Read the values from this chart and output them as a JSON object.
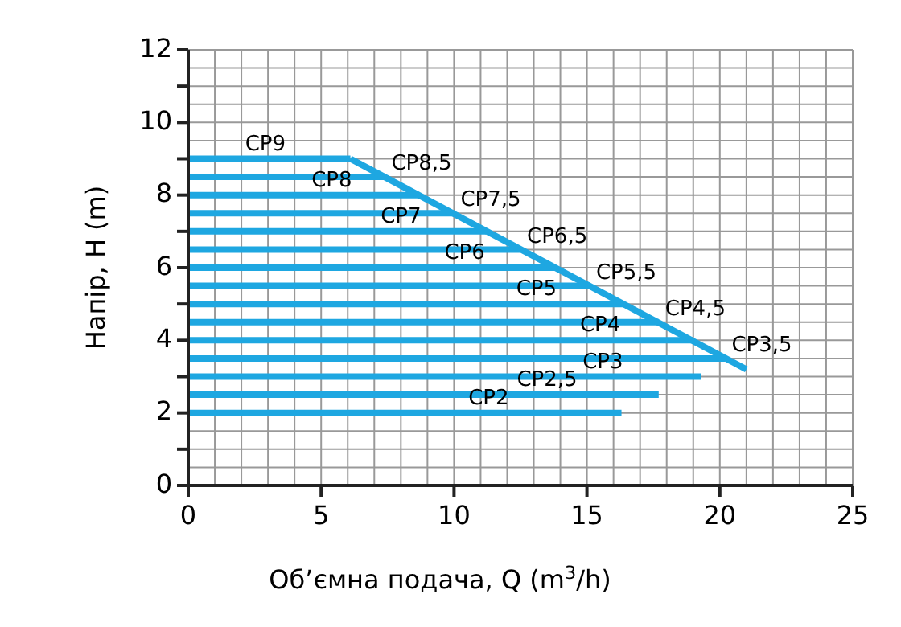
{
  "chart_data": {
    "type": "line",
    "xlabel": "Об’ємна подача, Q (m$^{3}$/h)",
    "ylabel": "Напір, H (m)",
    "xlim": [
      0,
      25
    ],
    "ylim": [
      0,
      12
    ],
    "xticks": [
      0,
      {
        "value": 1,
        "label": null
      },
      {
        "value": 2,
        "label": null
      },
      {
        "value": 3,
        "label": null
      },
      {
        "value": 4,
        "label": null
      },
      5,
      {
        "value": 6,
        "label": null
      },
      {
        "value": 7,
        "label": null
      },
      {
        "value": 8,
        "label": null
      },
      {
        "value": 9,
        "label": null
      },
      10,
      {
        "value": 11,
        "label": null
      },
      {
        "value": 12,
        "label": null
      },
      {
        "value": 13,
        "label": null
      },
      {
        "value": 14,
        "label": null
      },
      15,
      {
        "value": 16,
        "label": null
      },
      {
        "value": 17,
        "label": null
      },
      {
        "value": 18,
        "label": null
      },
      {
        "value": 19,
        "label": null
      },
      20,
      {
        "value": 21,
        "label": null
      },
      {
        "value": 22,
        "label": null
      },
      {
        "value": 23,
        "label": null
      },
      {
        "value": 24,
        "label": null
      },
      25
    ],
    "yticks": [
      0,
      {
        "value": 0.5,
        "label": null
      },
      {
        "value": 1,
        "label": null
      },
      {
        "value": 1.5,
        "label": null
      },
      2,
      {
        "value": 2.5,
        "label": null
      },
      {
        "value": 3,
        "label": null
      },
      {
        "value": 3.5,
        "label": null
      },
      4,
      {
        "value": 4.5,
        "label": null
      },
      {
        "value": 5,
        "label": null
      },
      {
        "value": 5.5,
        "label": null
      },
      6,
      {
        "value": 6.5,
        "label": null
      },
      {
        "value": 7,
        "label": null
      },
      {
        "value": 7.5,
        "label": null
      },
      8,
      {
        "value": 8.5,
        "label": null
      },
      {
        "value": 9,
        "label": null
      },
      {
        "value": 9.5,
        "label": null
      },
      10,
      {
        "value": 10.5,
        "label": null
      },
      {
        "value": 11,
        "label": null
      },
      {
        "value": 11.5,
        "label": null
      },
      12
    ],
    "grid": true,
    "marker": "none",
    "line_style": "solid",
    "series": [
      {
        "color": "#1ea7e1",
        "x": [
          0,
          16.3
        ],
        "values": [
          2,
          2
        ]
      },
      {
        "color": "#1ea7e1",
        "x": [
          0,
          17.7
        ],
        "values": [
          2.5,
          2.5
        ]
      },
      {
        "color": "#1ea7e1",
        "x": [
          0,
          19.3
        ],
        "values": [
          3,
          3
        ]
      },
      {
        "color": "#1ea7e1",
        "x": [
          0,
          20.2
        ],
        "values": [
          3.5,
          3.5
        ]
      },
      {
        "color": "#1ea7e1",
        "x": [
          0,
          19
        ],
        "values": [
          4,
          4
        ]
      },
      {
        "color": "#1ea7e1",
        "x": [
          0,
          17.7
        ],
        "values": [
          4.5,
          4.5
        ]
      },
      {
        "color": "#1ea7e1",
        "x": [
          0,
          16.4
        ],
        "values": [
          5,
          5
        ]
      },
      {
        "color": "#1ea7e1",
        "x": [
          0,
          15.1
        ],
        "values": [
          5.5,
          5.5
        ]
      },
      {
        "color": "#1ea7e1",
        "x": [
          0,
          13.8
        ],
        "values": [
          6,
          6
        ]
      },
      {
        "color": "#1ea7e1",
        "x": [
          0,
          12.5
        ],
        "values": [
          6.5,
          6.5
        ]
      },
      {
        "color": "#1ea7e1",
        "x": [
          0,
          11.2
        ],
        "values": [
          7,
          7
        ]
      },
      {
        "color": "#1ea7e1",
        "x": [
          0,
          10
        ],
        "values": [
          7.5,
          7.5
        ]
      },
      {
        "color": "#1ea7e1",
        "x": [
          0,
          8.7
        ],
        "values": [
          8,
          8
        ]
      },
      {
        "color": "#1ea7e1",
        "x": [
          0,
          7.4
        ],
        "values": [
          8.5,
          8.5
        ]
      },
      {
        "color": "#1ea7e1",
        "x": [
          0,
          6.1
        ],
        "values": [
          9,
          9
        ]
      },
      {
        "color": "#1ea7e1",
        "x": [
          6.1,
          21
        ],
        "values": [
          9,
          3.2
        ]
      }
    ],
    "annotations": [
      {
        "text": "CP9",
        "x": 2.9,
        "y": 9
      },
      {
        "text": "CP8,5",
        "x": 7.4,
        "y": 8.5
      },
      {
        "text": "CP8",
        "x": 5.4,
        "y": 8
      },
      {
        "text": "CP7,5",
        "x": 10,
        "y": 7.5
      },
      {
        "text": "CP7",
        "x": 8,
        "y": 7
      },
      {
        "text": "CP6,5",
        "x": 12.5,
        "y": 6.5
      },
      {
        "text": "CP6",
        "x": 10.4,
        "y": 6
      },
      {
        "text": "CP5,5",
        "x": 15.1,
        "y": 5.5
      },
      {
        "text": "CP5",
        "x": 13.1,
        "y": 5
      },
      {
        "text": "CP4,5",
        "x": 17.7,
        "y": 4.5
      },
      {
        "text": "CP4",
        "x": 15.5,
        "y": 4
      },
      {
        "text": "CP3,5",
        "x": 20.2,
        "y": 3.5
      },
      {
        "text": "CP3",
        "x": 15.6,
        "y": 3
      },
      {
        "text": "CP2,5",
        "x": 13.5,
        "y": 2.5
      },
      {
        "text": "CP2",
        "x": 11.3,
        "y": 2
      }
    ]
  }
}
